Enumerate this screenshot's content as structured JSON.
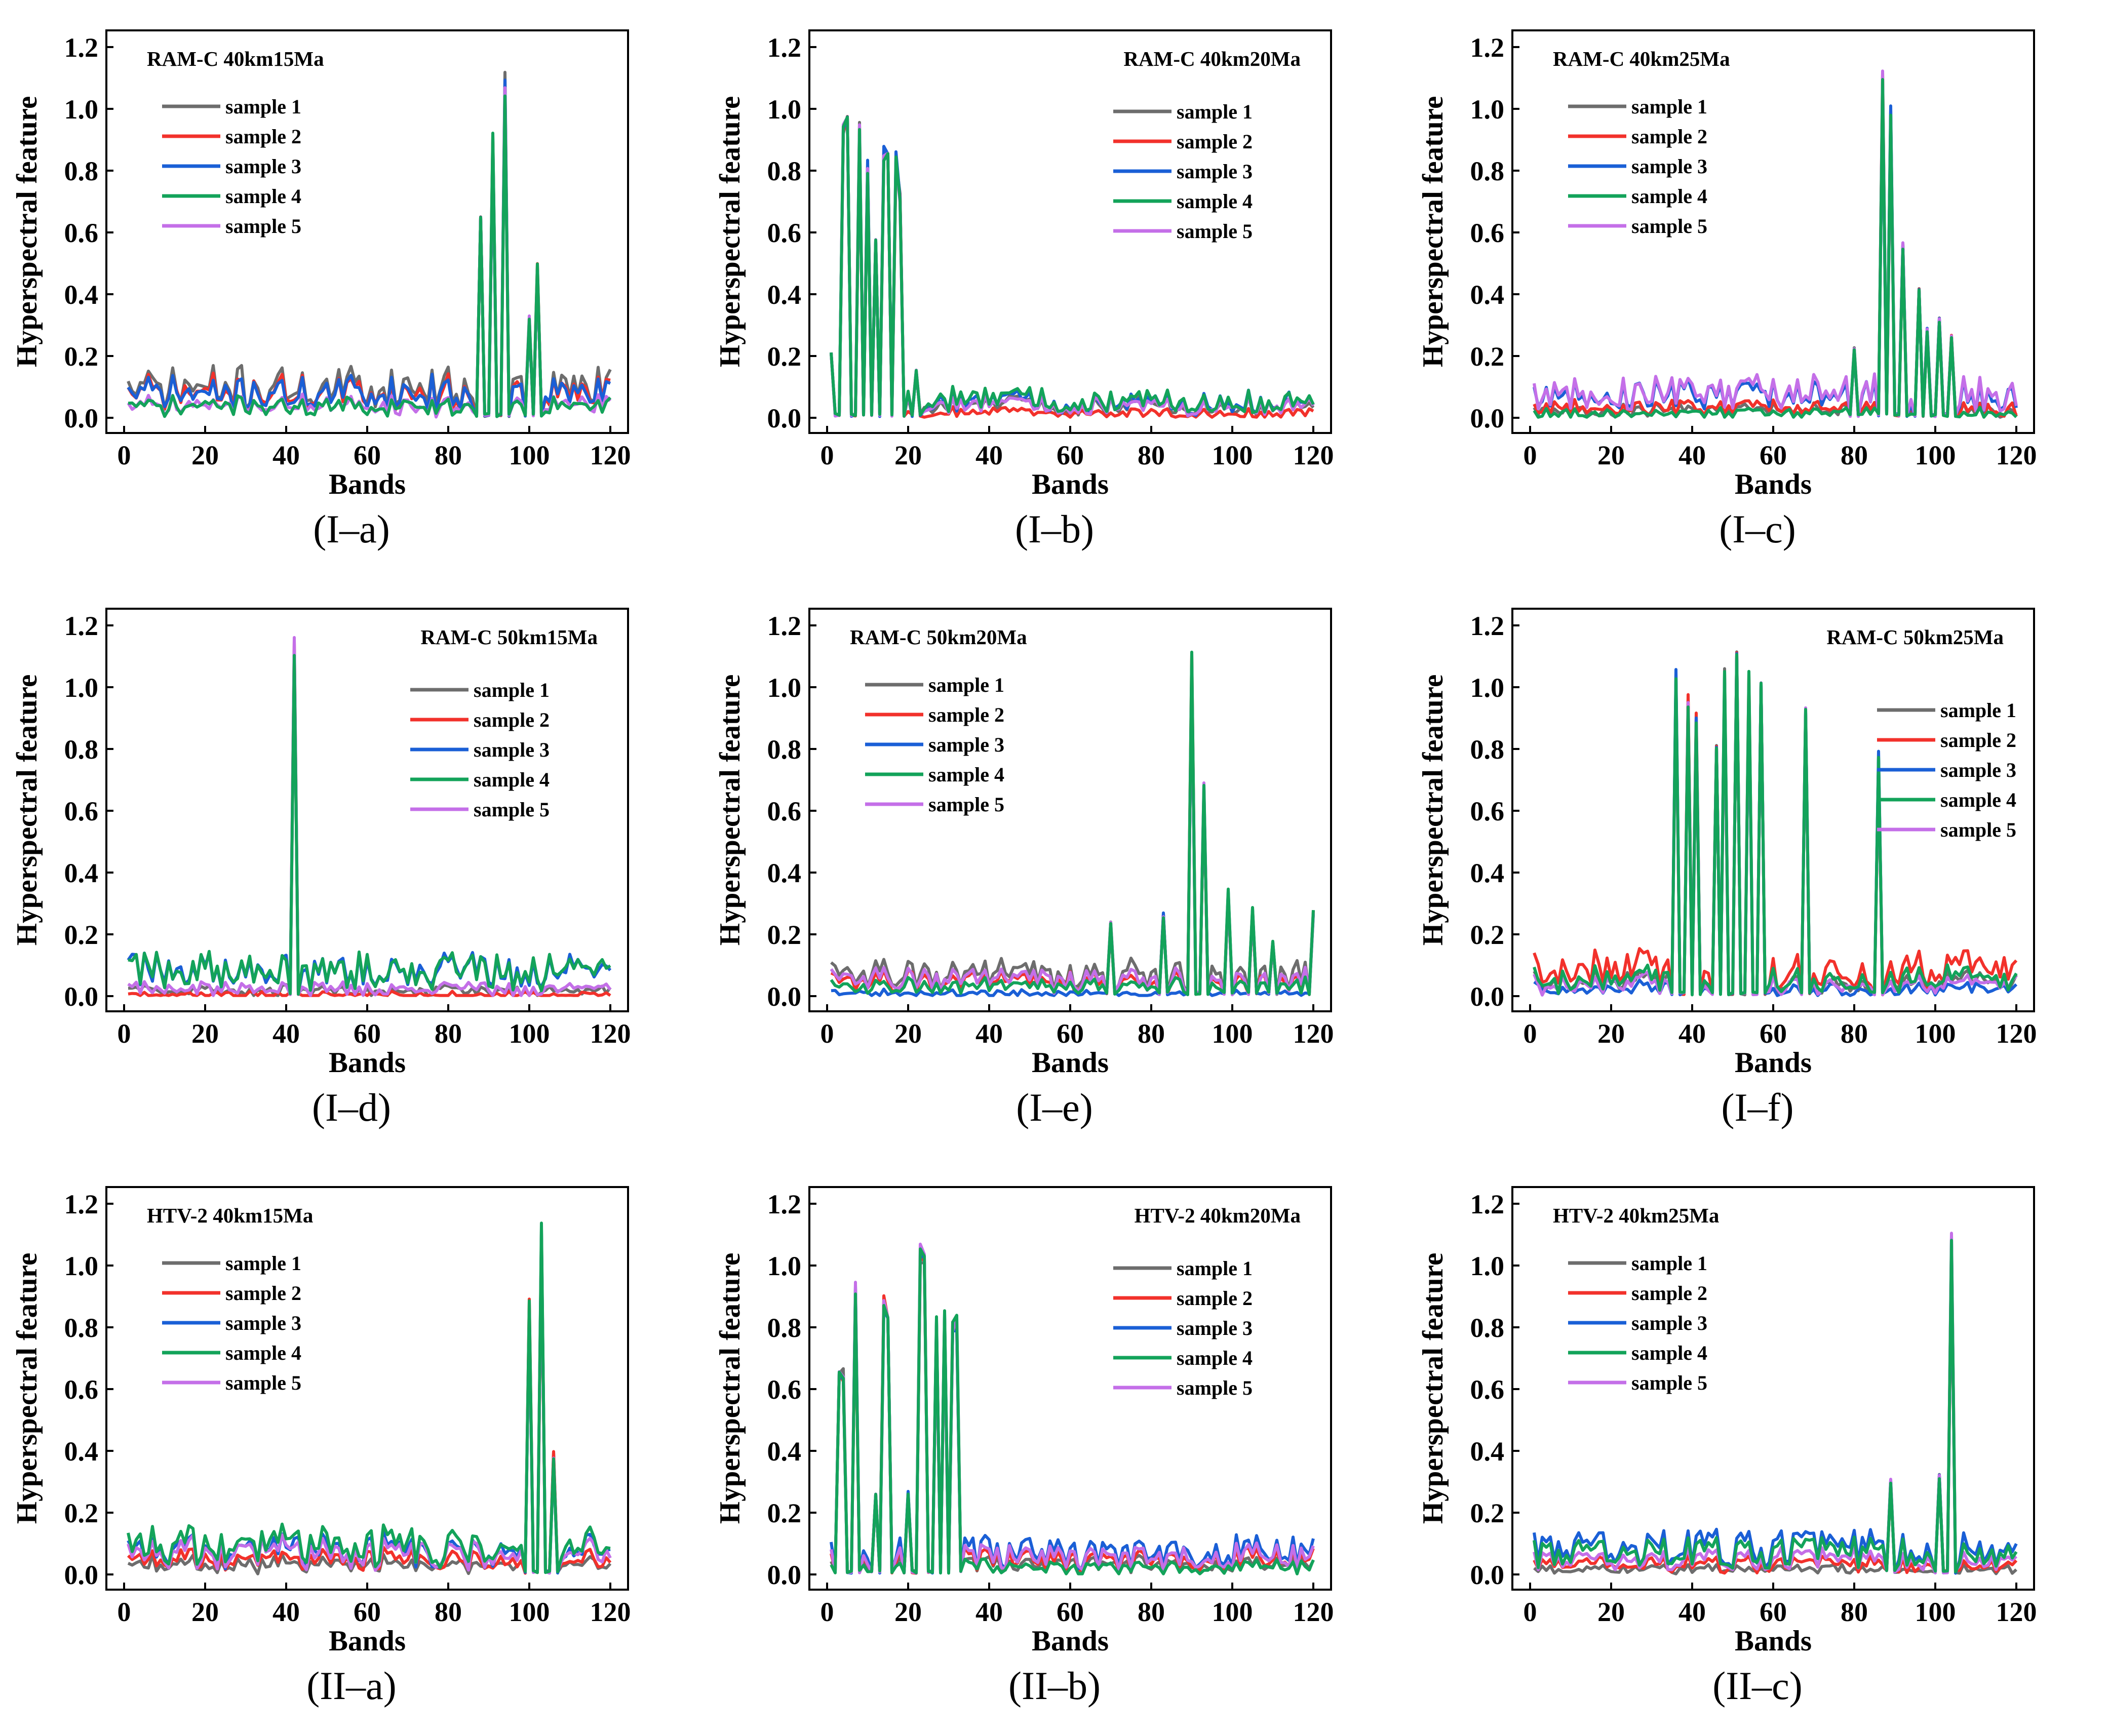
{
  "figure": {
    "xlabel": "Bands",
    "ylabel": "Hyperspectral feature",
    "legend": [
      "sample 1",
      "sample 2",
      "sample 3",
      "sample 4",
      "sample 5"
    ],
    "series_colors": [
      "#6d6d6d",
      "#f2312b",
      "#1a5fd6",
      "#13a35a",
      "#c46fe8"
    ]
  },
  "chart_data": [
    {
      "type": "line",
      "caption": "(I–a)",
      "title": "RAM-C 40km15Ma",
      "title_pos": "top-left",
      "legend_pos": "left",
      "xlim": [
        0,
        120
      ],
      "ylim": [
        0,
        1.2
      ],
      "xticks": [
        0,
        20,
        40,
        60,
        80,
        100,
        120
      ],
      "yticks": [
        0.0,
        0.2,
        0.4,
        0.6,
        0.8,
        1.0,
        1.2
      ],
      "base": [
        0.12,
        0.1,
        0.1,
        0.05,
        0.05
      ],
      "noise": 0.05,
      "peaks": [
        {
          "band": 88,
          "value": 0.69
        },
        {
          "band": 91,
          "value": 0.93
        },
        {
          "band": 94,
          "value": 1.12
        },
        {
          "band": 100,
          "value": 0.33
        },
        {
          "band": 102,
          "value": 0.5
        }
      ]
    },
    {
      "type": "line",
      "caption": "(I–b)",
      "title": "RAM-C 40km20Ma",
      "title_pos": "top-right",
      "legend_pos": "right",
      "xlim": [
        0,
        120
      ],
      "ylim": [
        0,
        1.2
      ],
      "xticks": [
        0,
        20,
        40,
        60,
        80,
        100,
        120
      ],
      "yticks": [
        0.0,
        0.2,
        0.4,
        0.6,
        0.8,
        1.0,
        1.2
      ],
      "base": [
        0.05,
        0.02,
        0.06,
        0.07,
        0.05
      ],
      "noise": 0.04,
      "peaks": [
        {
          "band": 1,
          "value": 0.22
        },
        {
          "band": 4,
          "value": 0.96
        },
        {
          "band": 5,
          "value": 1.0
        },
        {
          "band": 8,
          "value": 0.97
        },
        {
          "band": 10,
          "value": 0.84
        },
        {
          "band": 12,
          "value": 0.6
        },
        {
          "band": 14,
          "value": 0.89
        },
        {
          "band": 15,
          "value": 0.88
        },
        {
          "band": 17,
          "value": 0.87
        },
        {
          "band": 18,
          "value": 0.75
        },
        {
          "band": 22,
          "value": 0.16
        }
      ]
    },
    {
      "type": "line",
      "caption": "(I–c)",
      "title": "RAM-C 40km25Ma",
      "title_pos": "top-left",
      "legend_pos": "left",
      "xlim": [
        0,
        120
      ],
      "ylim": [
        0,
        1.2
      ],
      "xticks": [
        0,
        20,
        40,
        60,
        80,
        100,
        120
      ],
      "yticks": [
        0.0,
        0.2,
        0.4,
        0.6,
        0.8,
        1.0,
        1.2
      ],
      "base": [
        0.03,
        0.04,
        0.09,
        0.02,
        0.1
      ],
      "noise": 0.04,
      "peaks": [
        {
          "band": 80,
          "value": 0.23
        },
        {
          "band": 87,
          "value": 1.13
        },
        {
          "band": 89,
          "value": 1.02
        },
        {
          "band": 92,
          "value": 0.58
        },
        {
          "band": 96,
          "value": 0.42
        },
        {
          "band": 98,
          "value": 0.29
        },
        {
          "band": 101,
          "value": 0.33
        },
        {
          "band": 104,
          "value": 0.27
        }
      ]
    },
    {
      "type": "line",
      "caption": "(I–d)",
      "title": "RAM-C 50km15Ma",
      "title_pos": "top-right",
      "legend_pos": "right",
      "xlim": [
        0,
        120
      ],
      "ylim": [
        0,
        1.2
      ],
      "xticks": [
        0,
        20,
        40,
        60,
        80,
        100,
        120
      ],
      "yticks": [
        0.0,
        0.2,
        0.4,
        0.6,
        0.8,
        1.0,
        1.2
      ],
      "base": [
        0.02,
        0.003,
        0.1,
        0.1,
        0.03
      ],
      "noise": 0.05,
      "peaks": [
        {
          "band": 42,
          "value": 1.17
        }
      ]
    },
    {
      "type": "line",
      "caption": "(I–e)",
      "title": "RAM-C 50km20Ma",
      "title_pos": "top-left",
      "legend_pos": "left",
      "xlim": [
        0,
        120
      ],
      "ylim": [
        0,
        1.2
      ],
      "xticks": [
        0,
        20,
        40,
        60,
        80,
        100,
        120
      ],
      "yticks": [
        0.0,
        0.2,
        0.4,
        0.6,
        0.8,
        1.0,
        1.2
      ],
      "base": [
        0.09,
        0.06,
        0.01,
        0.04,
        0.07
      ],
      "noise": 0.04,
      "peaks": [
        {
          "band": 70,
          "value": 0.24
        },
        {
          "band": 83,
          "value": 0.27
        },
        {
          "band": 90,
          "value": 1.12
        },
        {
          "band": 93,
          "value": 0.7
        },
        {
          "band": 99,
          "value": 0.35
        },
        {
          "band": 105,
          "value": 0.29
        },
        {
          "band": 110,
          "value": 0.18
        },
        {
          "band": 120,
          "value": 0.28
        }
      ]
    },
    {
      "type": "line",
      "caption": "(I–f)",
      "title": "RAM-C 50km25Ma",
      "title_pos": "top-right",
      "legend_pos": "right-low",
      "xlim": [
        0,
        120
      ],
      "ylim": [
        0,
        1.2
      ],
      "xticks": [
        0,
        20,
        40,
        60,
        80,
        100,
        120
      ],
      "yticks": [
        0.0,
        0.2,
        0.4,
        0.6,
        0.8,
        1.0,
        1.2
      ],
      "base": [
        0.06,
        0.11,
        0.03,
        0.07,
        0.05
      ],
      "noise": 0.05,
      "peaks": [
        {
          "band": 36,
          "value": 1.06
        },
        {
          "band": 39,
          "value": 0.99
        },
        {
          "band": 41,
          "value": 0.93
        },
        {
          "band": 46,
          "value": 0.83
        },
        {
          "band": 48,
          "value": 1.06
        },
        {
          "band": 51,
          "value": 1.12
        },
        {
          "band": 54,
          "value": 1.06
        },
        {
          "band": 57,
          "value": 1.06
        },
        {
          "band": 68,
          "value": 0.96
        },
        {
          "band": 86,
          "value": 0.8
        }
      ]
    },
    {
      "type": "line",
      "caption": "(II–a)",
      "title": "HTV-2 40km15Ma",
      "title_pos": "top-left",
      "legend_pos": "left",
      "xlim": [
        0,
        120
      ],
      "ylim": [
        0,
        1.2
      ],
      "xticks": [
        0,
        20,
        40,
        60,
        80,
        100,
        120
      ],
      "yticks": [
        0.0,
        0.2,
        0.4,
        0.6,
        0.8,
        1.0,
        1.2
      ],
      "base": [
        0.04,
        0.06,
        0.1,
        0.12,
        0.09
      ],
      "noise": 0.05,
      "peaks": [
        {
          "band": 100,
          "value": 0.91
        },
        {
          "band": 103,
          "value": 1.15
        },
        {
          "band": 106,
          "value": 0.4
        }
      ]
    },
    {
      "type": "line",
      "caption": "(II–b)",
      "title": "HTV-2 40km20Ma",
      "title_pos": "top-right",
      "legend_pos": "right",
      "xlim": [
        0,
        120
      ],
      "ylim": [
        0,
        1.2
      ],
      "xticks": [
        0,
        20,
        40,
        60,
        80,
        100,
        120
      ],
      "yticks": [
        0.0,
        0.2,
        0.4,
        0.6,
        0.8,
        1.0,
        1.2
      ],
      "base": [
        0.04,
        0.06,
        0.09,
        0.03,
        0.07
      ],
      "noise": 0.04,
      "peaks": [
        {
          "band": 3,
          "value": 0.69
        },
        {
          "band": 4,
          "value": 0.67
        },
        {
          "band": 7,
          "value": 0.95
        },
        {
          "band": 12,
          "value": 0.27
        },
        {
          "band": 14,
          "value": 0.91
        },
        {
          "band": 15,
          "value": 0.89
        },
        {
          "band": 20,
          "value": 0.27
        },
        {
          "band": 23,
          "value": 1.08
        },
        {
          "band": 24,
          "value": 1.06
        },
        {
          "band": 27,
          "value": 0.84
        },
        {
          "band": 29,
          "value": 0.86
        },
        {
          "band": 31,
          "value": 0.82
        },
        {
          "band": 32,
          "value": 0.84
        }
      ]
    },
    {
      "type": "line",
      "caption": "(II–c)",
      "title": "HTV-2 40km25Ma",
      "title_pos": "top-left",
      "legend_pos": "left",
      "xlim": [
        0,
        120
      ],
      "ylim": [
        0,
        1.2
      ],
      "xticks": [
        0,
        20,
        40,
        60,
        80,
        100,
        120
      ],
      "yticks": [
        0.0,
        0.2,
        0.4,
        0.6,
        0.8,
        1.0,
        1.2
      ],
      "base": [
        0.02,
        0.04,
        0.11,
        0.09,
        0.06
      ],
      "noise": 0.04,
      "peaks": [
        {
          "band": 89,
          "value": 0.31
        },
        {
          "band": 101,
          "value": 0.33
        },
        {
          "band": 104,
          "value": 1.11
        }
      ]
    }
  ]
}
